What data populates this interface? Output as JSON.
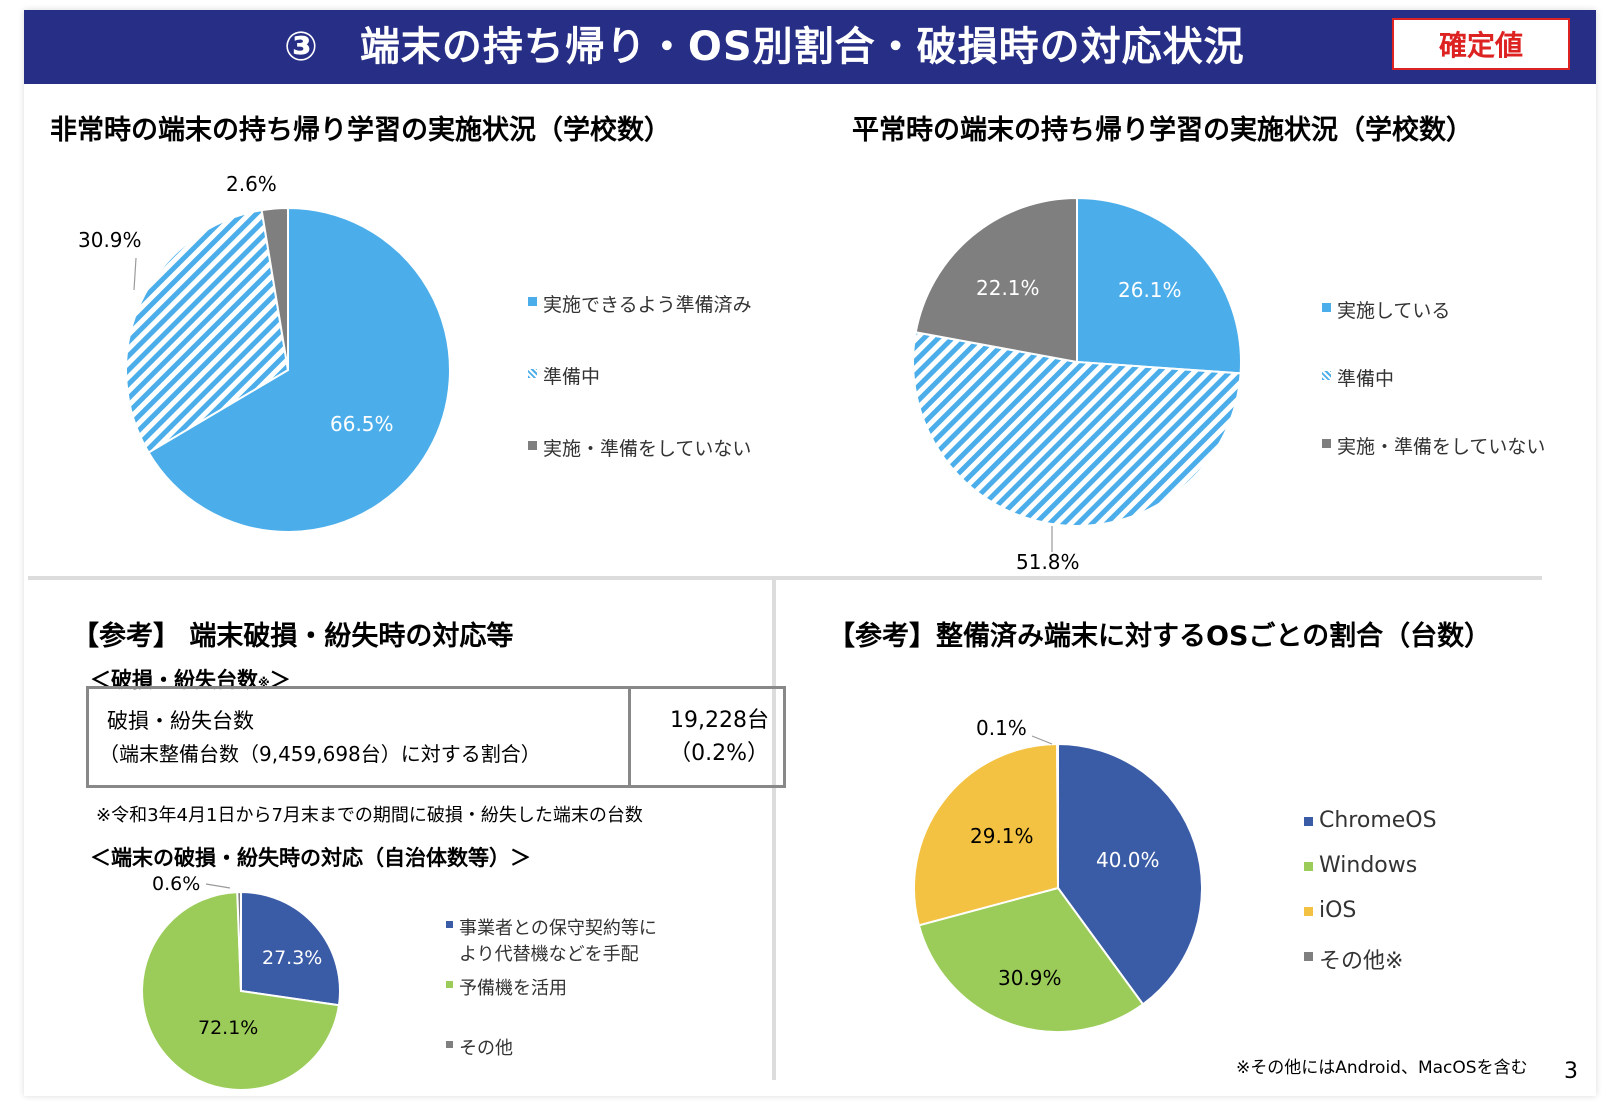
{
  "header": {
    "title": "③　端末の持ち帰り・OS別割合・破損時の対応状況",
    "badge": "確定値"
  },
  "page_number": "3",
  "section_damage": {
    "heading": "【参考】 端末破損・紛失時の対応等",
    "table_heading": "＜破損・紛失台数",
    "table_heading_mark": "※",
    "table_heading_close": "＞",
    "row_label": "破損・紛失台数",
    "row_sublabel": "（端末整備台数（9,459,698台）に対する割合）",
    "row_value": "19,228台",
    "row_ratio": "（0.2%）",
    "footnote": "※令和3年4月1日から7月末までの期間に破損・紛失した端末の台数",
    "response_heading": "＜端末の破損・紛失時の対応（自治体数等）＞"
  },
  "os_footnote": "※その他にはAndroid、MacOSを含む",
  "colors": {
    "light_blue": "#4baeea",
    "gray": "#7f7f7f",
    "navy": "#3a5ba6",
    "green": "#9bcc5a",
    "yellow": "#f4c242",
    "banner": "#262e86",
    "badge_red": "#dd2222"
  },
  "chart_data": [
    {
      "type": "pie",
      "title": "非常時の端末の持ち帰り学習の実施状況（学校数）",
      "categories": [
        "実施できるよう準備済み",
        "準備中",
        "実施・準備をしていない"
      ],
      "values": [
        66.5,
        30.9,
        2.6
      ],
      "labels": [
        "66.5%",
        "30.9%",
        "2.6%"
      ],
      "colors": [
        "#4baeea",
        "#4baeea",
        "#7f7f7f"
      ],
      "patterns": [
        "solid",
        "hatch",
        "solid"
      ],
      "legend": "right"
    },
    {
      "type": "pie",
      "title": "平常時の端末の持ち帰り学習の実施状況（学校数）",
      "categories": [
        "実施している",
        "準備中",
        "実施・準備をしていない"
      ],
      "values": [
        26.1,
        51.8,
        22.1
      ],
      "labels": [
        "26.1%",
        "51.8%",
        "22.1%"
      ],
      "colors": [
        "#4baeea",
        "#4baeea",
        "#7f7f7f"
      ],
      "patterns": [
        "solid",
        "hatch",
        "solid"
      ],
      "legend": "right"
    },
    {
      "type": "pie",
      "title": "",
      "categories": [
        "事業者との保守契約等により代替機などを手配",
        "予備機を活用",
        "その他"
      ],
      "legend_lines": [
        [
          "事業者との保守契約等に",
          "より代替機などを手配"
        ],
        [
          "予備機を活用"
        ],
        [
          "その他"
        ]
      ],
      "values": [
        27.3,
        72.1,
        0.6
      ],
      "labels": [
        "27.3%",
        "72.1%",
        "0.6%"
      ],
      "colors": [
        "#3a5ba6",
        "#9bcc5a",
        "#7f7f7f"
      ],
      "legend": "right"
    },
    {
      "type": "pie",
      "title": "【参考】整備済み端末に対するOSごとの割合（台数）",
      "categories": [
        "ChromeOS",
        "Windows",
        "iOS",
        "その他※"
      ],
      "values": [
        40.0,
        30.9,
        29.1,
        0.1
      ],
      "labels": [
        "40.0%",
        "30.9%",
        "29.1%",
        "0.1%"
      ],
      "colors": [
        "#3a5ba6",
        "#9bcc5a",
        "#f4c242",
        "#7f7f7f"
      ],
      "legend": "right"
    }
  ]
}
